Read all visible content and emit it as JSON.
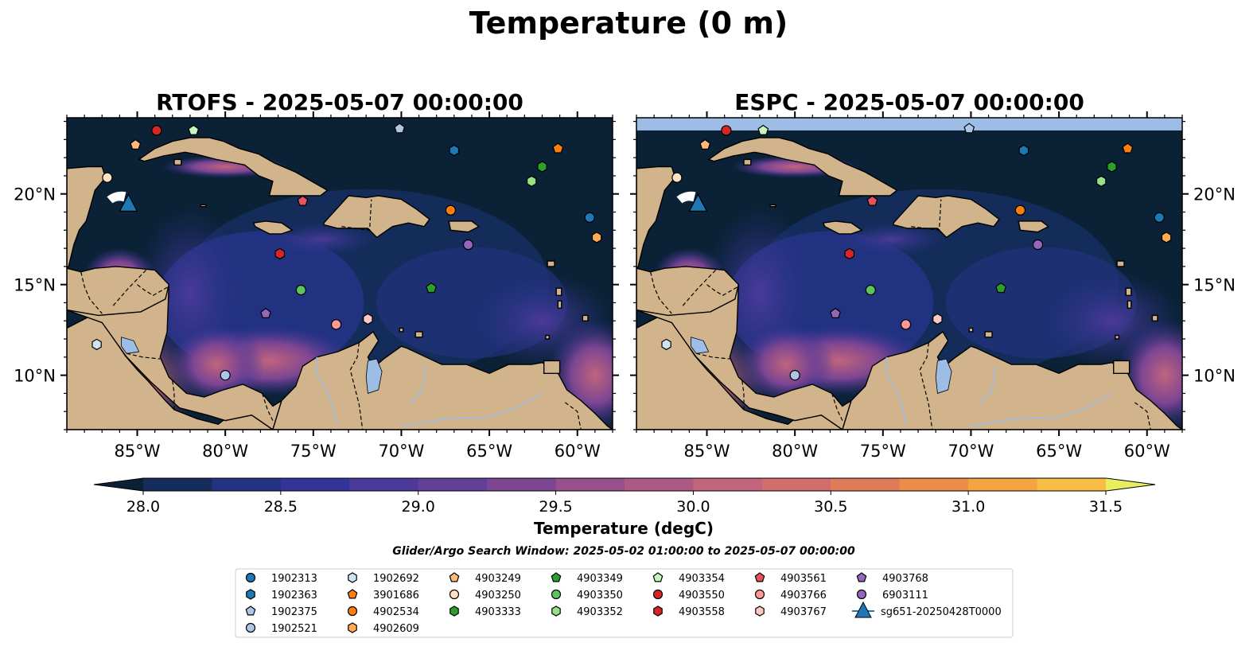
{
  "figure": {
    "title": "Temperature (0 m)",
    "search_window": "Glider/Argo Search Window: 2025-05-02 01:00:00 to 2025-05-07 00:00:00"
  },
  "panels": [
    {
      "title": "RTOFS - 2025-05-07 00:00:00",
      "model": "RTOFS"
    },
    {
      "title": "ESPC - 2025-05-07 00:00:00",
      "model": "ESPC"
    }
  ],
  "map_extent": {
    "lon_min": -89,
    "lon_max": -58,
    "lat_min": 7,
    "lat_max": 24.2
  },
  "lon_ticks": [
    "85°W",
    "80°W",
    "75°W",
    "70°W",
    "65°W",
    "60°W"
  ],
  "lat_ticks": [
    "20°N",
    "15°N",
    "10°N"
  ],
  "colors": {
    "land": "#d2b48c",
    "ocean_deep": "#0b2136",
    "lake": "#9dbde6",
    "no_data_band": "#9dbde6",
    "glider": "#1f77b4"
  },
  "colorbar": {
    "label": "Temperature (degC)",
    "ticks": [
      "28.0",
      "28.5",
      "29.0",
      "29.5",
      "30.0",
      "30.5",
      "31.0",
      "31.5"
    ],
    "min": 28.0,
    "max": 31.5,
    "step": 0.25,
    "colors": [
      "#0b2136",
      "#142d5d",
      "#233384",
      "#35339a",
      "#4b3a9a",
      "#633f98",
      "#7c4592",
      "#95508d",
      "#ac5a84",
      "#c1647d",
      "#d26d6d",
      "#e07b5a",
      "#ec8d49",
      "#f4a440",
      "#f7bd47",
      "#f5d54d",
      "#e8ef5e"
    ]
  },
  "floats": [
    {
      "id": "1902313",
      "marker": "circle",
      "color": "#1f77b4",
      "lon": -59.3,
      "lat": 18.7
    },
    {
      "id": "1902363",
      "marker": "hexagon",
      "color": "#1f77b4",
      "lon": -67.0,
      "lat": 22.4
    },
    {
      "id": "1902375",
      "marker": "pentagon",
      "color": "#aec7e8",
      "lon": -70.1,
      "lat": 23.6
    },
    {
      "id": "1902521",
      "marker": "circle",
      "color": "#aec7e8",
      "lon": -80.0,
      "lat": 10.0
    },
    {
      "id": "1902692",
      "marker": "hexagon",
      "color": "#cde4f5",
      "lon": -87.3,
      "lat": 11.7
    },
    {
      "id": "3901686",
      "marker": "pentagon",
      "color": "#ff7f0e",
      "lon": -61.1,
      "lat": 22.5
    },
    {
      "id": "4902534",
      "marker": "circle",
      "color": "#ff7f0e",
      "lon": -67.2,
      "lat": 19.1
    },
    {
      "id": "4902609",
      "marker": "hexagon",
      "color": "#ffaa55",
      "lon": -58.9,
      "lat": 17.6
    },
    {
      "id": "4903249",
      "marker": "pentagon",
      "color": "#ffbb78",
      "lon": -85.1,
      "lat": 22.7
    },
    {
      "id": "4903250",
      "marker": "circle",
      "color": "#ffe0c0",
      "lon": -86.7,
      "lat": 20.9
    },
    {
      "id": "4903333",
      "marker": "hexagon",
      "color": "#2ca02c",
      "lon": -62.0,
      "lat": 21.5
    },
    {
      "id": "4903349",
      "marker": "pentagon",
      "color": "#2ca02c",
      "lon": -68.3,
      "lat": 14.8
    },
    {
      "id": "4903350",
      "marker": "circle",
      "color": "#5cc45c",
      "lon": -75.7,
      "lat": 14.7
    },
    {
      "id": "4903352",
      "marker": "hexagon",
      "color": "#98df8a",
      "lon": -62.6,
      "lat": 20.7
    },
    {
      "id": "4903354",
      "marker": "pentagon",
      "color": "#c7f5bf",
      "lon": -81.8,
      "lat": 23.5
    },
    {
      "id": "4903550",
      "marker": "circle",
      "color": "#d62728",
      "lon": -83.9,
      "lat": 23.5
    },
    {
      "id": "4903558",
      "marker": "hexagon",
      "color": "#d62728",
      "lon": -76.9,
      "lat": 16.7
    },
    {
      "id": "4903561",
      "marker": "pentagon",
      "color": "#e8535b",
      "lon": -75.6,
      "lat": 19.6
    },
    {
      "id": "4903766",
      "marker": "circle",
      "color": "#ff9896",
      "lon": -73.7,
      "lat": 12.8
    },
    {
      "id": "4903767",
      "marker": "hexagon",
      "color": "#ffc8c6",
      "lon": -71.9,
      "lat": 13.1
    },
    {
      "id": "4903768",
      "marker": "pentagon",
      "color": "#9467bd",
      "lon": -77.7,
      "lat": 13.4
    },
    {
      "id": "6903111",
      "marker": "circle",
      "color": "#9467bd",
      "lon": -66.2,
      "lat": 17.2
    }
  ],
  "glider": {
    "id": "sg651-20250428T0000",
    "marker": "triangle",
    "color": "#1f77b4",
    "lon": -85.5,
    "lat": 19.4
  }
}
